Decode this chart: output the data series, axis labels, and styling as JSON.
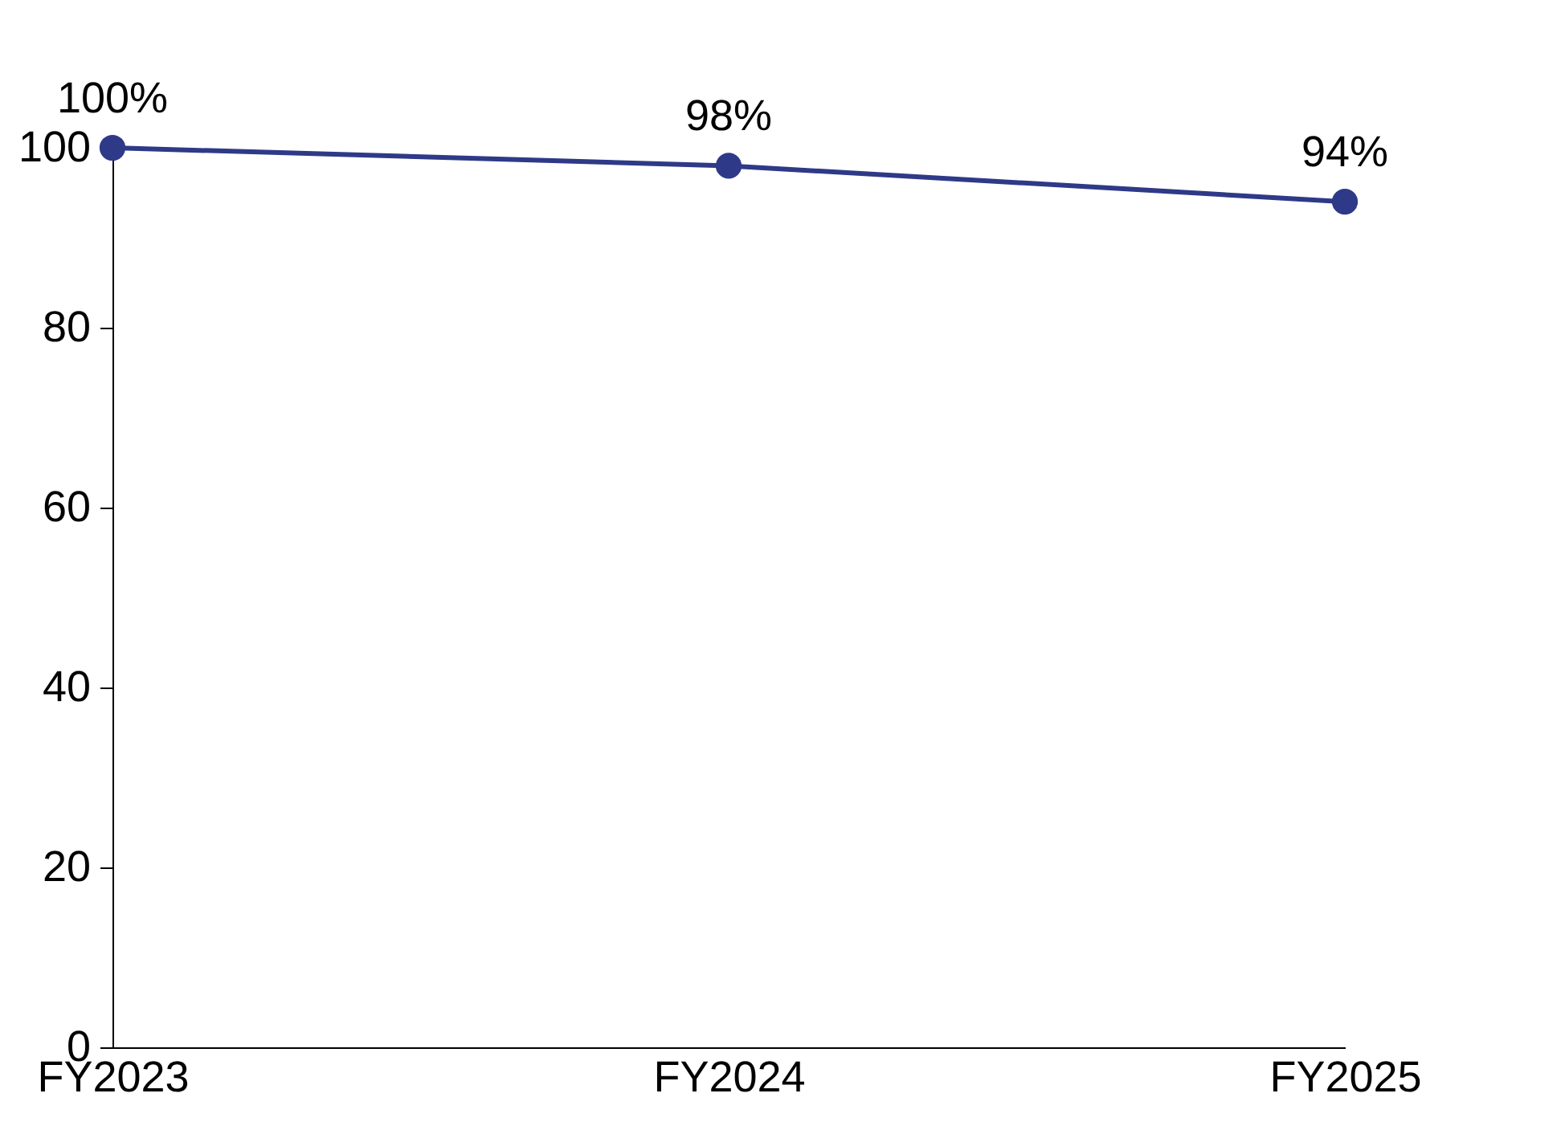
{
  "chart_data": {
    "type": "line",
    "categories": [
      "FY2023",
      "FY2024",
      "FY2025"
    ],
    "series": [
      {
        "color": "#2e3a87",
        "values": [
          100,
          98,
          94
        ],
        "value_labels": [
          "100%",
          "98%",
          "94%"
        ]
      }
    ],
    "ylim": [
      0,
      100
    ],
    "yticks": [
      0,
      20,
      40,
      60,
      80,
      100
    ],
    "grid": false,
    "marker": "circle",
    "line_style": "solid"
  }
}
